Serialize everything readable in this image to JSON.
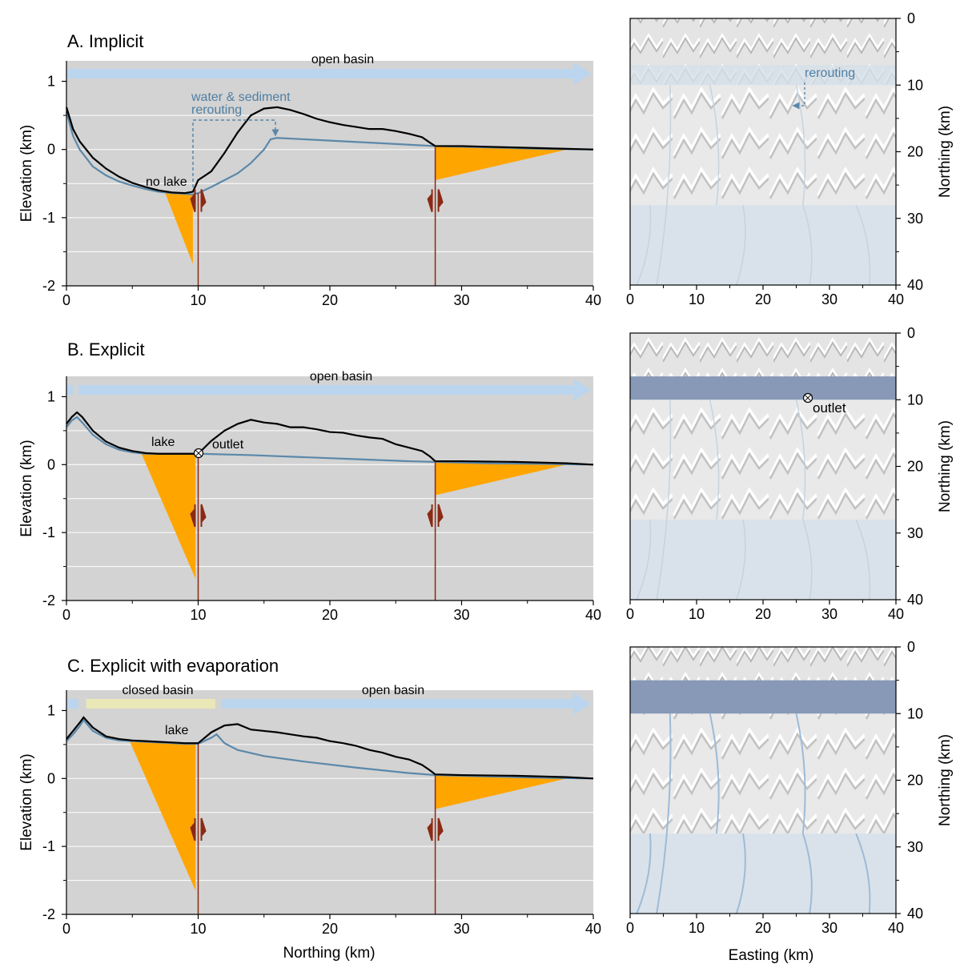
{
  "colors": {
    "background": "#d3d3d3",
    "surface": "#000000",
    "water": "#5b88aa",
    "fill": "#ffa500",
    "fault": "#8b2a14",
    "open_bar": "#bcd5ee",
    "closed_bar": "#ebe8b8",
    "lake_map": "#8799b6"
  },
  "chart_data": [
    {
      "type": "area",
      "title": "A. Implicit",
      "xlabel": "",
      "ylabel": "Elevation (km)",
      "xlim": [
        0,
        40
      ],
      "ylim": [
        -2,
        1.3
      ],
      "x_ticks": [
        "0",
        "10",
        "20",
        "30",
        "40"
      ],
      "y_ticks": [
        "1",
        "0",
        "-1",
        "-2"
      ],
      "faults_km": [
        10,
        28
      ],
      "labels": {
        "open_basin": "open basin",
        "no_lake": "no lake",
        "rerouting": "water & sediment",
        "rerouting2": "rerouting"
      },
      "surface": {
        "x": [
          0,
          0.5,
          1,
          2,
          3,
          4,
          5,
          6,
          7,
          8,
          9,
          9.6,
          10,
          11,
          12,
          13,
          14,
          15,
          16,
          17,
          18,
          19,
          20,
          21,
          22,
          23,
          24,
          25,
          26,
          27,
          27.6,
          28,
          29,
          30,
          32,
          34,
          36,
          38,
          40
        ],
        "y": [
          0.62,
          0.3,
          0.12,
          -0.12,
          -0.28,
          -0.4,
          -0.49,
          -0.55,
          -0.6,
          -0.63,
          -0.64,
          -0.62,
          -0.45,
          -0.32,
          -0.05,
          0.25,
          0.5,
          0.6,
          0.62,
          0.58,
          0.52,
          0.45,
          0.4,
          0.36,
          0.33,
          0.3,
          0.3,
          0.27,
          0.23,
          0.18,
          0.1,
          0.05,
          0.05,
          0.05,
          0.04,
          0.03,
          0.02,
          0.01,
          0.0
        ]
      },
      "water": {
        "x": [
          0,
          0.5,
          1,
          2,
          3,
          4,
          5,
          6,
          7,
          8,
          9,
          9.6,
          10,
          11,
          12,
          13,
          14,
          15,
          15.5,
          16,
          20,
          24,
          28,
          32,
          36,
          40
        ],
        "y": [
          0.55,
          0.2,
          0.0,
          -0.25,
          -0.38,
          -0.47,
          -0.53,
          -0.58,
          -0.62,
          -0.64,
          -0.65,
          -0.66,
          -0.64,
          -0.55,
          -0.45,
          -0.35,
          -0.2,
          0.0,
          0.15,
          0.17,
          0.13,
          0.09,
          0.05,
          0.03,
          0.01,
          0.0
        ]
      },
      "wedges": [
        {
          "x": [
            7.5,
            9.6,
            9.6
          ],
          "y": [
            -0.64,
            -0.66,
            -1.68
          ]
        },
        {
          "x": [
            28,
            38,
            28
          ],
          "y": [
            0.05,
            0.0,
            -0.45
          ]
        }
      ],
      "bars": [
        {
          "kind": "open",
          "x0": 0,
          "x1": 38.5,
          "arrow": true
        }
      ]
    },
    {
      "type": "area",
      "title": "B. Explicit",
      "xlabel": "",
      "ylabel": "Elevation (km)",
      "xlim": [
        0,
        40
      ],
      "ylim": [
        -2,
        1.3
      ],
      "x_ticks": [
        "0",
        "10",
        "20",
        "30",
        "40"
      ],
      "y_ticks": [
        "1",
        "0",
        "-1",
        "-2"
      ],
      "faults_km": [
        10,
        28
      ],
      "labels": {
        "open_basin": "open basin",
        "lake": "lake",
        "outlet": "outlet"
      },
      "surface": {
        "x": [
          0,
          0.4,
          0.8,
          1.2,
          2,
          3,
          4,
          5,
          6,
          7,
          8,
          9,
          10,
          11,
          12,
          13,
          14,
          15,
          16,
          17,
          18,
          19,
          20,
          21,
          22,
          23,
          24,
          25,
          26,
          27,
          27.6,
          28,
          30,
          34,
          38,
          40
        ],
        "y": [
          0.6,
          0.7,
          0.77,
          0.7,
          0.5,
          0.34,
          0.25,
          0.2,
          0.17,
          0.16,
          0.16,
          0.16,
          0.16,
          0.35,
          0.5,
          0.6,
          0.66,
          0.62,
          0.6,
          0.55,
          0.55,
          0.52,
          0.48,
          0.47,
          0.43,
          0.4,
          0.38,
          0.3,
          0.25,
          0.2,
          0.12,
          0.05,
          0.05,
          0.04,
          0.02,
          0.0
        ]
      },
      "water": {
        "x": [
          0,
          0.4,
          0.8,
          1.2,
          2,
          3,
          4,
          5,
          6,
          7,
          8,
          9,
          10,
          14,
          18,
          22,
          26,
          28,
          32,
          36,
          40
        ],
        "y": [
          0.55,
          0.65,
          0.7,
          0.62,
          0.44,
          0.3,
          0.22,
          0.18,
          0.16,
          0.16,
          0.16,
          0.16,
          0.16,
          0.14,
          0.11,
          0.08,
          0.05,
          0.04,
          0.02,
          0.01,
          0.0
        ]
      },
      "wedges": [
        {
          "x": [
            5.7,
            9.8,
            9.8
          ],
          "y": [
            0.16,
            0.16,
            -1.68
          ]
        },
        {
          "x": [
            28,
            38,
            28
          ],
          "y": [
            0.04,
            0.0,
            -0.45
          ]
        }
      ],
      "bars": [
        {
          "kind": "open",
          "x0": 0,
          "x1": 0.5,
          "arrow": false
        },
        {
          "kind": "open",
          "x0": 0.9,
          "x1": 38.5,
          "arrow": true
        }
      ]
    },
    {
      "type": "area",
      "title": "C. Explicit with evaporation",
      "xlabel": "Northing (km)",
      "ylabel": "Elevation (km)",
      "xlim": [
        0,
        40
      ],
      "ylim": [
        -2,
        1.3
      ],
      "x_ticks": [
        "0",
        "10",
        "20",
        "30",
        "40"
      ],
      "y_ticks": [
        "1",
        "0",
        "-1",
        "-2"
      ],
      "faults_km": [
        10,
        28
      ],
      "labels": {
        "open_basin": "open basin",
        "closed_basin": "closed basin",
        "lake": "lake"
      },
      "surface": {
        "x": [
          0,
          0.5,
          1,
          1.3,
          2,
          3,
          4,
          5,
          6,
          7,
          8,
          9,
          10,
          11,
          12,
          13,
          14,
          15,
          16,
          17,
          18,
          19,
          20,
          21,
          22,
          23,
          24,
          25,
          26,
          27,
          27.6,
          28,
          30,
          34,
          38,
          40
        ],
        "y": [
          0.58,
          0.7,
          0.82,
          0.9,
          0.75,
          0.62,
          0.58,
          0.56,
          0.55,
          0.54,
          0.53,
          0.52,
          0.52,
          0.68,
          0.78,
          0.8,
          0.72,
          0.7,
          0.68,
          0.65,
          0.62,
          0.6,
          0.55,
          0.52,
          0.48,
          0.42,
          0.38,
          0.32,
          0.28,
          0.2,
          0.12,
          0.06,
          0.05,
          0.04,
          0.02,
          0.0
        ]
      },
      "water": {
        "x": [
          0,
          0.5,
          1,
          1.3,
          2,
          3,
          4,
          5,
          6,
          7,
          8,
          9,
          10,
          11,
          11.4,
          12,
          13,
          15,
          18,
          22,
          26,
          28,
          32,
          36,
          40
        ],
        "y": [
          0.55,
          0.65,
          0.77,
          0.86,
          0.7,
          0.6,
          0.56,
          0.55,
          0.54,
          0.53,
          0.52,
          0.51,
          0.51,
          0.6,
          0.65,
          0.52,
          0.42,
          0.33,
          0.25,
          0.16,
          0.08,
          0.05,
          0.03,
          0.01,
          0.0
        ]
      },
      "wedges": [
        {
          "x": [
            4.8,
            9.8,
            9.8
          ],
          "y": [
            0.55,
            0.51,
            -1.65
          ]
        },
        {
          "x": [
            28,
            38,
            28
          ],
          "y": [
            0.05,
            0.0,
            -0.45
          ]
        }
      ],
      "bars": [
        {
          "kind": "open",
          "x0": 0,
          "x1": 0.9,
          "arrow": false
        },
        {
          "kind": "closed",
          "x0": 1.5,
          "x1": 11.3,
          "arrow": false
        },
        {
          "kind": "open",
          "x0": 11.8,
          "x1": 38.5,
          "arrow": true
        }
      ]
    },
    {
      "type": "heatmap",
      "title": "",
      "xlabel": "",
      "ylabel": "Northing (km)",
      "xlim": [
        0,
        40
      ],
      "ylim": [
        40,
        0
      ],
      "x_ticks": [
        "0",
        "10",
        "20",
        "30",
        "40"
      ],
      "y_ticks": [
        "0",
        "10",
        "20",
        "30",
        "40"
      ],
      "labels": {
        "rerouting": "rerouting"
      },
      "lake_rows_km": null
    },
    {
      "type": "heatmap",
      "title": "",
      "xlabel": "",
      "ylabel": "Northing (km)",
      "xlim": [
        0,
        40
      ],
      "ylim": [
        40,
        0
      ],
      "x_ticks": [
        "0",
        "10",
        "20",
        "30",
        "40"
      ],
      "y_ticks": [
        "0",
        "10",
        "20",
        "30",
        "40"
      ],
      "labels": {
        "outlet": "outlet"
      },
      "lake_rows_km": [
        6.5,
        10
      ]
    },
    {
      "type": "heatmap",
      "title": "",
      "xlabel": "Easting (km)",
      "ylabel": "Northing (km)",
      "xlim": [
        0,
        40
      ],
      "ylim": [
        40,
        0
      ],
      "x_ticks": [
        "0",
        "10",
        "20",
        "30",
        "40"
      ],
      "y_ticks": [
        "0",
        "10",
        "20",
        "30",
        "40"
      ],
      "labels": {},
      "lake_rows_km": [
        5,
        10
      ]
    }
  ]
}
